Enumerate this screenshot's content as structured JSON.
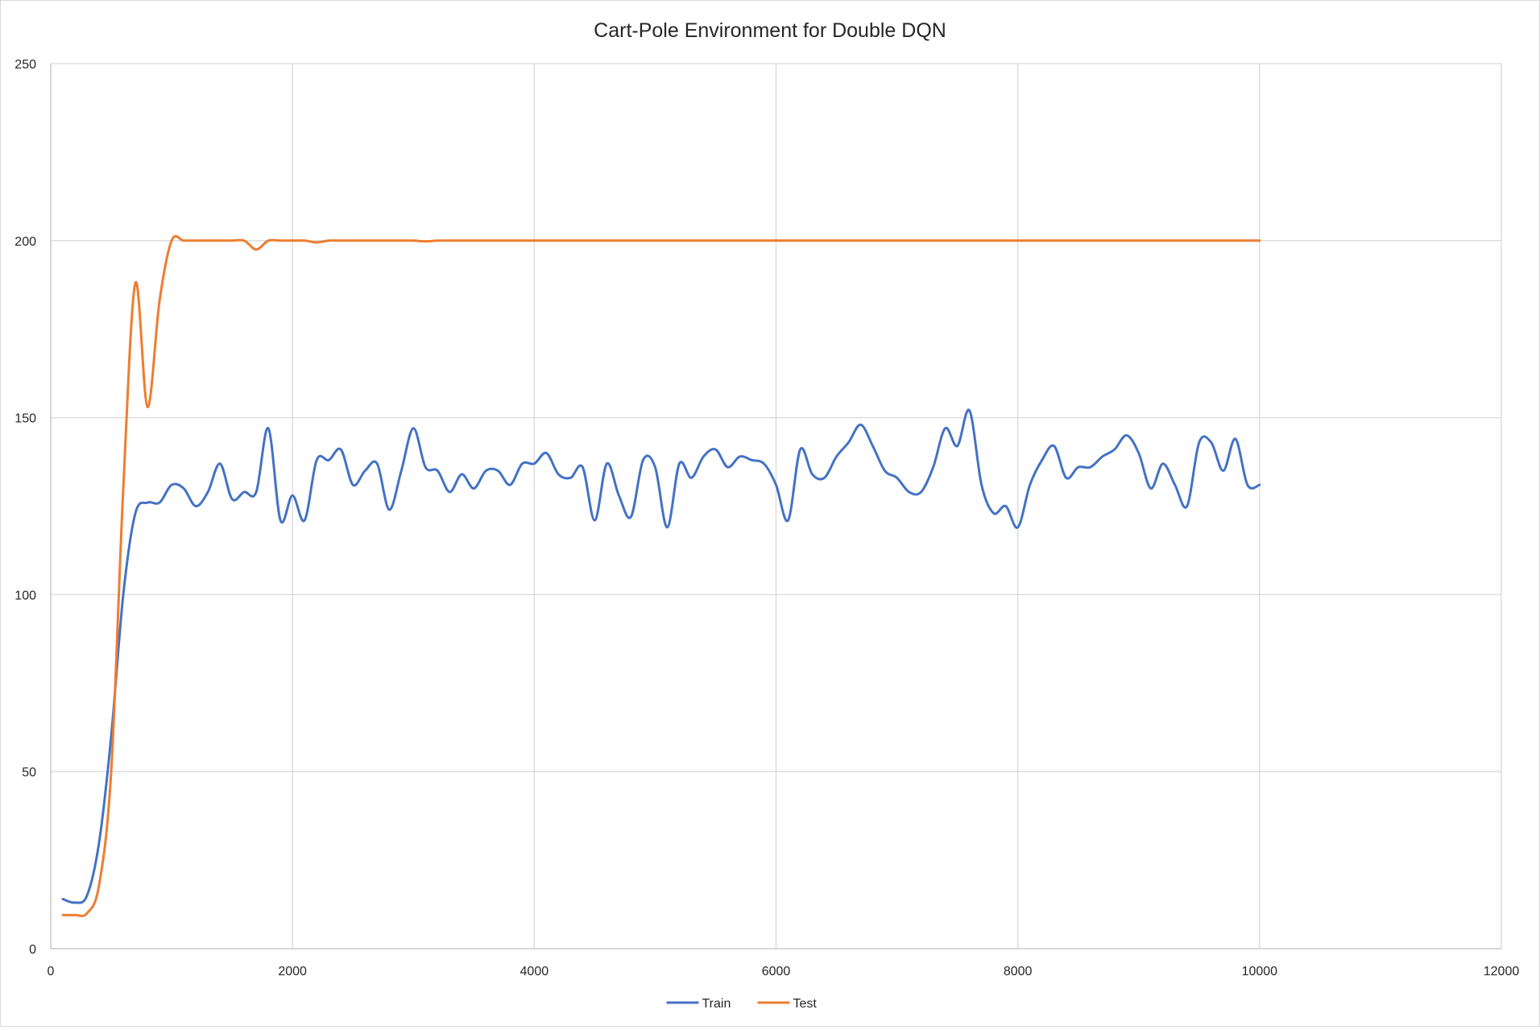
{
  "chart_data": {
    "type": "line",
    "title": "Cart-Pole Environment for Double DQN",
    "xlabel": "",
    "ylabel": "",
    "xlim": [
      0,
      12000
    ],
    "ylim": [
      0,
      250
    ],
    "x_ticks": [
      0,
      2000,
      4000,
      6000,
      8000,
      10000,
      12000
    ],
    "y_ticks": [
      0,
      50,
      100,
      150,
      200,
      250
    ],
    "grid": true,
    "smooth": true,
    "legend_position": "bottom",
    "series": [
      {
        "name": "Train",
        "color": "#4472C4",
        "x": [
          100,
          200,
          300,
          400,
          500,
          600,
          700,
          800,
          900,
          1000,
          1100,
          1200,
          1300,
          1400,
          1500,
          1600,
          1700,
          1800,
          1900,
          2000,
          2100,
          2200,
          2300,
          2400,
          2500,
          2600,
          2700,
          2800,
          2900,
          3000,
          3100,
          3200,
          3300,
          3400,
          3500,
          3600,
          3700,
          3800,
          3900,
          4000,
          4100,
          4200,
          4300,
          4400,
          4500,
          4600,
          4700,
          4800,
          4900,
          5000,
          5100,
          5200,
          5300,
          5400,
          5500,
          5600,
          5700,
          5800,
          5900,
          6000,
          6100,
          6200,
          6300,
          6400,
          6500,
          6600,
          6700,
          6800,
          6900,
          7000,
          7100,
          7200,
          7300,
          7400,
          7500,
          7600,
          7700,
          7800,
          7900,
          8000,
          8100,
          8200,
          8300,
          8400,
          8500,
          8600,
          8700,
          8800,
          8900,
          9000,
          9100,
          9200,
          9300,
          9400,
          9500,
          9600,
          9700,
          9800,
          9900,
          10000
        ],
        "values": [
          14,
          13,
          15,
          30,
          60,
          100,
          123,
          126,
          126,
          131,
          130,
          125,
          129,
          137,
          127,
          129,
          129,
          147,
          121,
          128,
          121,
          138,
          138,
          141,
          131,
          135,
          137,
          124,
          135,
          147,
          136,
          135,
          129,
          134,
          130,
          135,
          135,
          131,
          137,
          137,
          140,
          134,
          133,
          136,
          121,
          137,
          128,
          122,
          138,
          136,
          119,
          137,
          133,
          139,
          141,
          136,
          139,
          138,
          137,
          131,
          121,
          141,
          134,
          133,
          139,
          143,
          148,
          142,
          135,
          133,
          129,
          129,
          136,
          147,
          142,
          152,
          131,
          123,
          125,
          119,
          131,
          138,
          142,
          133,
          136,
          136,
          139,
          141,
          145,
          140,
          130,
          137,
          131,
          125,
          143,
          143,
          135,
          144,
          131,
          131
        ]
      },
      {
        "name": "Test",
        "color": "#ED7D31",
        "x": [
          100,
          200,
          300,
          400,
          500,
          600,
          700,
          800,
          900,
          1000,
          1100,
          1200,
          1300,
          1400,
          1500,
          1600,
          1700,
          1800,
          1900,
          2000,
          2100,
          2200,
          2300,
          2400,
          2500,
          2600,
          2700,
          2800,
          2900,
          3000,
          3100,
          3200,
          3300,
          3400,
          3500,
          3600,
          3700,
          3800,
          3900,
          4000,
          4100,
          4200,
          4300,
          4400,
          4500,
          4600,
          4700,
          4800,
          4900,
          5000,
          5100,
          5200,
          5300,
          5400,
          5500,
          5600,
          5700,
          5800,
          5900,
          6000,
          6100,
          6200,
          6300,
          6400,
          6500,
          6600,
          6700,
          6800,
          6900,
          7000,
          7100,
          7200,
          7300,
          7400,
          7500,
          7600,
          7700,
          7800,
          7900,
          8000,
          8100,
          8200,
          8300,
          8400,
          8500,
          8600,
          8700,
          8800,
          8900,
          9000,
          9100,
          9200,
          9300,
          9400,
          9500,
          9600,
          9700,
          9800,
          9900,
          10000
        ],
        "values": [
          9.5,
          9.5,
          10,
          18,
          50,
          130,
          188,
          153,
          183,
          200,
          200,
          200,
          200,
          200,
          200,
          200,
          197.5,
          200,
          200,
          200,
          200,
          199.5,
          200,
          200,
          200,
          200,
          200,
          200,
          200,
          200,
          199.8,
          200,
          200,
          200,
          200,
          200,
          200,
          200,
          200,
          200,
          200,
          200,
          200,
          200,
          200,
          200,
          200,
          200,
          200,
          200,
          200,
          200,
          200,
          200,
          200,
          200,
          200,
          200,
          200,
          200,
          200,
          200,
          200,
          200,
          200,
          200,
          200,
          200,
          200,
          200,
          200,
          200,
          200,
          200,
          200,
          200,
          200,
          200,
          200,
          200,
          200,
          200,
          200,
          200,
          200,
          200,
          200,
          200,
          200,
          200,
          200,
          200,
          200,
          200,
          200,
          200,
          200,
          200,
          200,
          200
        ]
      }
    ]
  }
}
